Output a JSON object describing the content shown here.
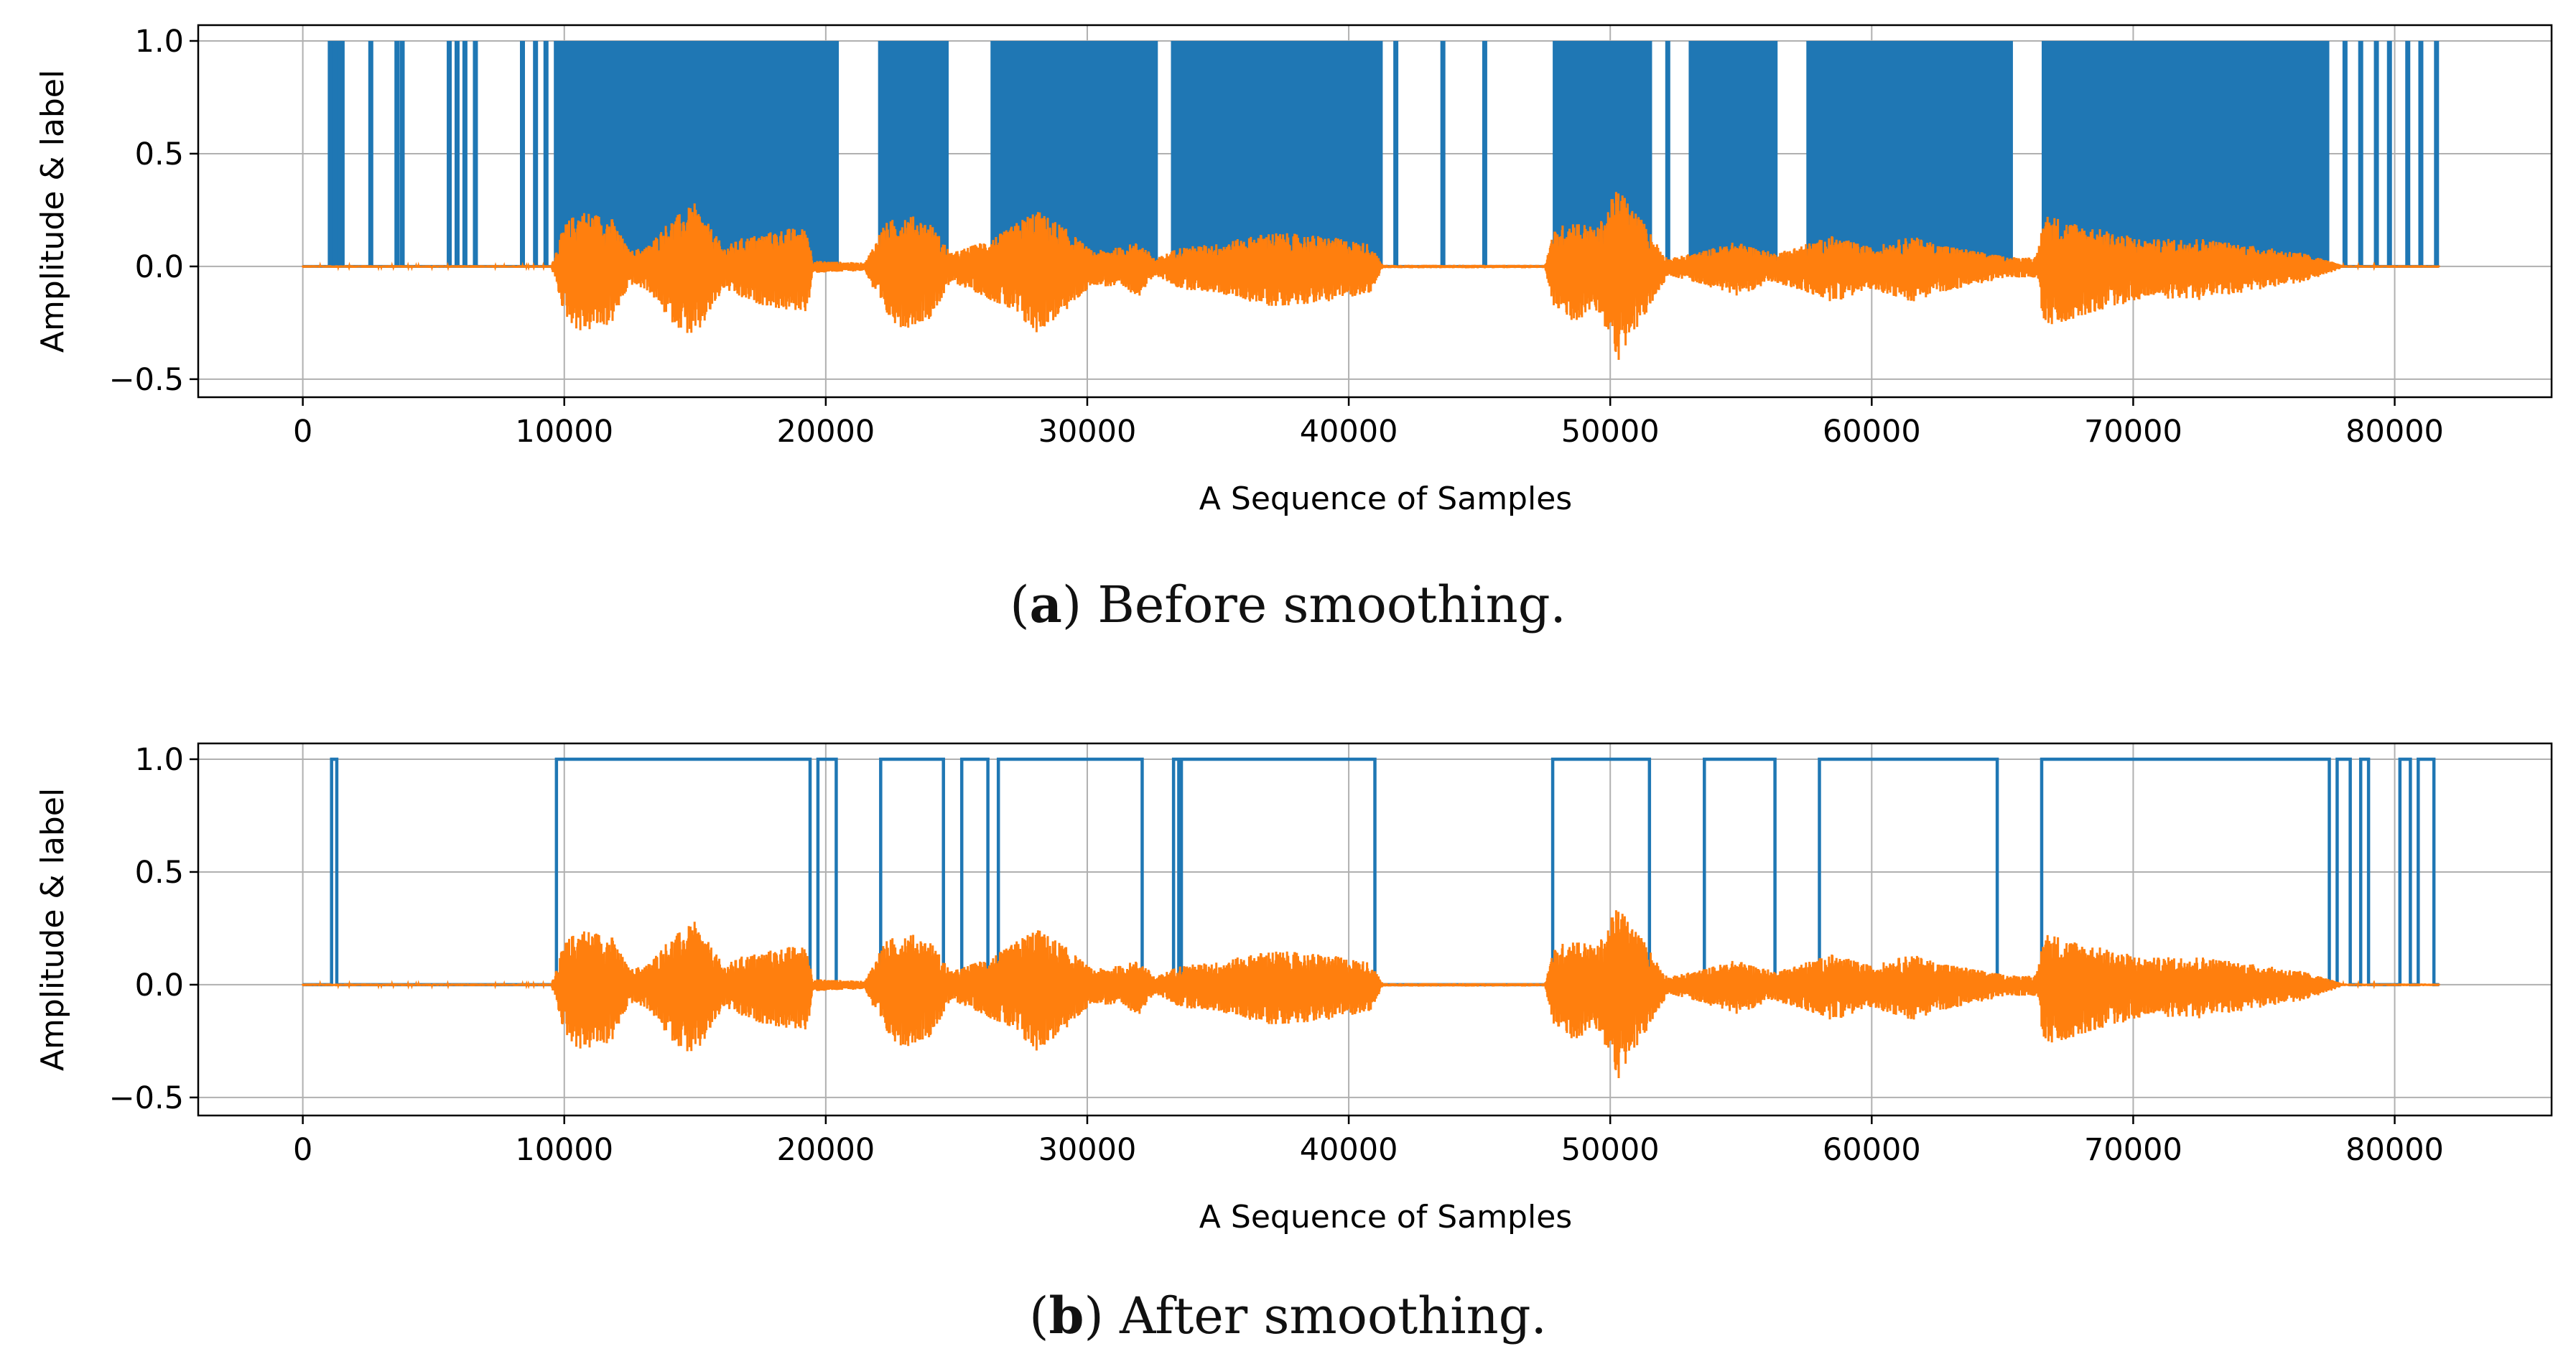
{
  "colors": {
    "label": "#1f77b4",
    "amplitude": "#ff7f0e",
    "grid": "#b0b0b0"
  },
  "chart_data": [
    {
      "id": "a",
      "type": "line",
      "xlabel": "A Sequence of Samples",
      "ylabel": "Amplitude & label",
      "xlim": [
        -4000,
        86000
      ],
      "ylim": [
        -0.58,
        1.07
      ],
      "xticks": [
        0,
        10000,
        20000,
        30000,
        40000,
        50000,
        60000,
        70000,
        80000
      ],
      "xtick_labels": [
        "0",
        "10000",
        "20000",
        "30000",
        "40000",
        "50000",
        "60000",
        "70000",
        "80000"
      ],
      "yticks": [
        -0.5,
        0.0,
        0.5,
        1.0
      ],
      "ytick_labels": [
        "−0.5",
        "0.0",
        "0.5",
        "1.0"
      ],
      "grid": true,
      "caption_letter": "a",
      "caption_text": ") Before smoothing.",
      "series": [
        {
          "name": "label",
          "style": "dense",
          "segments": [
            [
              1000,
              1600
            ],
            [
              9600,
              20500
            ],
            [
              22000,
              24700
            ],
            [
              26300,
              32700
            ],
            [
              33200,
              41300
            ],
            [
              47800,
              51600
            ],
            [
              53000,
              56400
            ],
            [
              57500,
              65400
            ],
            [
              66500,
              77500
            ]
          ],
          "spikes": [
            1050,
            1250,
            1450,
            2600,
            3600,
            3800,
            5600,
            5900,
            6200,
            6600,
            8400,
            8900,
            9300,
            41800,
            43600,
            45200,
            52200,
            78100,
            78700,
            79300,
            79800,
            80500,
            81000,
            81600
          ]
        },
        {
          "name": "amplitude",
          "noise_floor": 0.006,
          "envelope": [
            [
              0,
              0.006
            ],
            [
              9500,
              0.006
            ],
            [
              10000,
              0.22
            ],
            [
              10600,
              0.3
            ],
            [
              11800,
              0.26
            ],
            [
              12500,
              0.08
            ],
            [
              13200,
              0.11
            ],
            [
              14000,
              0.24
            ],
            [
              15000,
              0.33
            ],
            [
              16100,
              0.1
            ],
            [
              16800,
              0.15
            ],
            [
              17500,
              0.17
            ],
            [
              18500,
              0.2
            ],
            [
              19300,
              0.2
            ],
            [
              19500,
              0.03
            ],
            [
              21500,
              0.02
            ],
            [
              22200,
              0.22
            ],
            [
              23000,
              0.28
            ],
            [
              24000,
              0.23
            ],
            [
              24800,
              0.07
            ],
            [
              25800,
              0.12
            ],
            [
              26800,
              0.18
            ],
            [
              28000,
              0.3
            ],
            [
              29000,
              0.22
            ],
            [
              30200,
              0.08
            ],
            [
              31200,
              0.1
            ],
            [
              32000,
              0.13
            ],
            [
              32600,
              0.04
            ],
            [
              33500,
              0.1
            ],
            [
              35000,
              0.12
            ],
            [
              37000,
              0.18
            ],
            [
              39000,
              0.16
            ],
            [
              40800,
              0.12
            ],
            [
              41300,
              0.008
            ],
            [
              47500,
              0.008
            ],
            [
              47800,
              0.18
            ],
            [
              48500,
              0.25
            ],
            [
              49500,
              0.2
            ],
            [
              50300,
              0.42
            ],
            [
              51200,
              0.25
            ],
            [
              51800,
              0.12
            ],
            [
              52200,
              0.04
            ],
            [
              53500,
              0.08
            ],
            [
              54800,
              0.13
            ],
            [
              56300,
              0.07
            ],
            [
              57500,
              0.12
            ],
            [
              58500,
              0.16
            ],
            [
              60000,
              0.1
            ],
            [
              61500,
              0.16
            ],
            [
              62500,
              0.12
            ],
            [
              64000,
              0.08
            ],
            [
              65200,
              0.05
            ],
            [
              66300,
              0.05
            ],
            [
              66600,
              0.28
            ],
            [
              67500,
              0.24
            ],
            [
              68600,
              0.2
            ],
            [
              70500,
              0.14
            ],
            [
              72500,
              0.15
            ],
            [
              74500,
              0.11
            ],
            [
              76500,
              0.07
            ],
            [
              77500,
              0.03
            ],
            [
              78000,
              0.006
            ],
            [
              81700,
              0.006
            ]
          ]
        }
      ]
    },
    {
      "id": "b",
      "type": "line",
      "xlabel": "A Sequence of Samples",
      "ylabel": "Amplitude & label",
      "xlim": [
        -4000,
        86000
      ],
      "ylim": [
        -0.58,
        1.07
      ],
      "xticks": [
        0,
        10000,
        20000,
        30000,
        40000,
        50000,
        60000,
        70000,
        80000
      ],
      "xtick_labels": [
        "0",
        "10000",
        "20000",
        "30000",
        "40000",
        "50000",
        "60000",
        "70000",
        "80000"
      ],
      "yticks": [
        -0.5,
        0.0,
        0.5,
        1.0
      ],
      "ytick_labels": [
        "−0.5",
        "0.0",
        "0.5",
        "1.0"
      ],
      "grid": true,
      "caption_letter": "b",
      "caption_text": ") After smoothing.",
      "series": [
        {
          "name": "label",
          "style": "step",
          "segments": [
            [
              1100,
              1300
            ],
            [
              9700,
              19400
            ],
            [
              19700,
              20400
            ],
            [
              22100,
              24500
            ],
            [
              25200,
              26200
            ],
            [
              26600,
              32100
            ],
            [
              33300,
              33500
            ],
            [
              33600,
              41000
            ],
            [
              47800,
              51500
            ],
            [
              53600,
              56300
            ],
            [
              58000,
              64800
            ],
            [
              66500,
              77500
            ],
            [
              77800,
              78300
            ],
            [
              78700,
              79000
            ],
            [
              80200,
              80600
            ],
            [
              80900,
              81500
            ]
          ]
        },
        {
          "name": "amplitude",
          "noise_floor": 0.006,
          "envelope": [
            [
              0,
              0.006
            ],
            [
              9500,
              0.006
            ],
            [
              10000,
              0.22
            ],
            [
              10600,
              0.3
            ],
            [
              11800,
              0.26
            ],
            [
              12500,
              0.08
            ],
            [
              13200,
              0.11
            ],
            [
              14000,
              0.24
            ],
            [
              15000,
              0.33
            ],
            [
              16100,
              0.1
            ],
            [
              16800,
              0.15
            ],
            [
              17500,
              0.17
            ],
            [
              18500,
              0.2
            ],
            [
              19300,
              0.2
            ],
            [
              19500,
              0.03
            ],
            [
              21500,
              0.02
            ],
            [
              22200,
              0.22
            ],
            [
              23000,
              0.28
            ],
            [
              24000,
              0.23
            ],
            [
              24800,
              0.07
            ],
            [
              25800,
              0.12
            ],
            [
              26800,
              0.18
            ],
            [
              28000,
              0.3
            ],
            [
              29000,
              0.22
            ],
            [
              30200,
              0.08
            ],
            [
              31200,
              0.1
            ],
            [
              32000,
              0.13
            ],
            [
              32600,
              0.04
            ],
            [
              33500,
              0.1
            ],
            [
              35000,
              0.12
            ],
            [
              37000,
              0.18
            ],
            [
              39000,
              0.16
            ],
            [
              40800,
              0.12
            ],
            [
              41300,
              0.008
            ],
            [
              47500,
              0.008
            ],
            [
              47800,
              0.18
            ],
            [
              48500,
              0.25
            ],
            [
              49500,
              0.2
            ],
            [
              50300,
              0.42
            ],
            [
              51200,
              0.25
            ],
            [
              51800,
              0.12
            ],
            [
              52200,
              0.04
            ],
            [
              53500,
              0.08
            ],
            [
              54800,
              0.13
            ],
            [
              56300,
              0.07
            ],
            [
              57500,
              0.12
            ],
            [
              58500,
              0.16
            ],
            [
              60000,
              0.1
            ],
            [
              61500,
              0.16
            ],
            [
              62500,
              0.12
            ],
            [
              64000,
              0.08
            ],
            [
              65200,
              0.05
            ],
            [
              66300,
              0.05
            ],
            [
              66600,
              0.28
            ],
            [
              67500,
              0.24
            ],
            [
              68600,
              0.2
            ],
            [
              70500,
              0.14
            ],
            [
              72500,
              0.15
            ],
            [
              74500,
              0.11
            ],
            [
              76500,
              0.07
            ],
            [
              77500,
              0.03
            ],
            [
              78000,
              0.006
            ],
            [
              81700,
              0.006
            ]
          ]
        }
      ]
    }
  ]
}
